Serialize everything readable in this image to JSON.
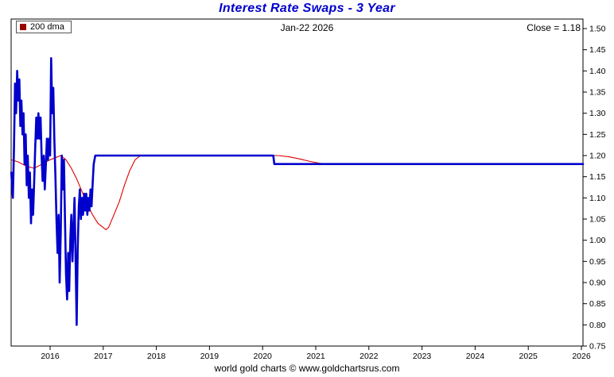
{
  "footer": {
    "credit": "world gold charts © www.goldchartsrus.com"
  },
  "chart_data": {
    "type": "line",
    "title": "Interest Rate Swaps - 3 Year",
    "top_center_label": "Jan-22  2026",
    "top_right_label": "Close = 1.18",
    "legend": [
      {
        "label": "200 dma",
        "color": "#990000"
      }
    ],
    "xlabel": "",
    "ylabel": "",
    "x_ticks": [
      2016,
      2017,
      2018,
      2019,
      2020,
      2021,
      2022,
      2023,
      2024,
      2025,
      2026
    ],
    "y_ticks": [
      0.75,
      0.8,
      0.85,
      0.9,
      0.95,
      1.0,
      1.05,
      1.1,
      1.15,
      1.2,
      1.25,
      1.3,
      1.35,
      1.4,
      1.45,
      1.5
    ],
    "x_range": [
      2015.27,
      2026.03
    ],
    "y_range": [
      0.75,
      1.5
    ],
    "grid": false,
    "legend_position": "top-left",
    "close_value": 1.18,
    "series": [
      {
        "name": "200 dma",
        "color": "#dd0000",
        "width": 1.1,
        "points": [
          [
            2015.27,
            1.19
          ],
          [
            2015.4,
            1.185
          ],
          [
            2015.55,
            1.175
          ],
          [
            2015.7,
            1.17
          ],
          [
            2015.85,
            1.18
          ],
          [
            2016.0,
            1.19
          ],
          [
            2016.1,
            1.195
          ],
          [
            2016.2,
            1.2
          ],
          [
            2016.3,
            1.19
          ],
          [
            2016.4,
            1.17
          ],
          [
            2016.5,
            1.145
          ],
          [
            2016.6,
            1.115
          ],
          [
            2016.7,
            1.085
          ],
          [
            2016.8,
            1.06
          ],
          [
            2016.9,
            1.04
          ],
          [
            2017.0,
            1.03
          ],
          [
            2017.05,
            1.025
          ],
          [
            2017.1,
            1.03
          ],
          [
            2017.2,
            1.06
          ],
          [
            2017.3,
            1.09
          ],
          [
            2017.4,
            1.13
          ],
          [
            2017.5,
            1.165
          ],
          [
            2017.6,
            1.19
          ],
          [
            2017.7,
            1.2
          ],
          [
            2020.3,
            1.2
          ],
          [
            2020.5,
            1.197
          ],
          [
            2020.7,
            1.192
          ],
          [
            2020.9,
            1.186
          ],
          [
            2021.1,
            1.181
          ],
          [
            2021.3,
            1.18
          ],
          [
            2026.03,
            1.18
          ]
        ]
      },
      {
        "name": "3 Year Interest Rate Swap",
        "color": "#0000cc",
        "width": 2.6,
        "points": [
          [
            2015.27,
            1.16
          ],
          [
            2015.3,
            1.1
          ],
          [
            2015.32,
            1.22
          ],
          [
            2015.34,
            1.37
          ],
          [
            2015.36,
            1.3
          ],
          [
            2015.38,
            1.4
          ],
          [
            2015.4,
            1.33
          ],
          [
            2015.42,
            1.38
          ],
          [
            2015.44,
            1.27
          ],
          [
            2015.46,
            1.33
          ],
          [
            2015.48,
            1.25
          ],
          [
            2015.5,
            1.3
          ],
          [
            2015.52,
            1.18
          ],
          [
            2015.54,
            1.25
          ],
          [
            2015.56,
            1.13
          ],
          [
            2015.58,
            1.2
          ],
          [
            2015.6,
            1.1
          ],
          [
            2015.62,
            1.16
          ],
          [
            2015.64,
            1.04
          ],
          [
            2015.66,
            1.12
          ],
          [
            2015.68,
            1.06
          ],
          [
            2015.7,
            1.14
          ],
          [
            2015.72,
            1.22
          ],
          [
            2015.74,
            1.29
          ],
          [
            2015.76,
            1.24
          ],
          [
            2015.78,
            1.3
          ],
          [
            2015.8,
            1.24
          ],
          [
            2015.82,
            1.29
          ],
          [
            2015.84,
            1.2
          ],
          [
            2015.86,
            1.14
          ],
          [
            2015.88,
            1.2
          ],
          [
            2015.9,
            1.12
          ],
          [
            2015.92,
            1.18
          ],
          [
            2015.94,
            1.24
          ],
          [
            2015.96,
            1.19
          ],
          [
            2015.98,
            1.24
          ],
          [
            2016.0,
            1.2
          ],
          [
            2016.02,
            1.43
          ],
          [
            2016.04,
            1.3
          ],
          [
            2016.06,
            1.36
          ],
          [
            2016.08,
            1.24
          ],
          [
            2016.1,
            1.15
          ],
          [
            2016.12,
            1.05
          ],
          [
            2016.14,
            0.97
          ],
          [
            2016.16,
            1.06
          ],
          [
            2016.18,
            0.9
          ],
          [
            2016.2,
            1.02
          ],
          [
            2016.22,
            1.2
          ],
          [
            2016.24,
            1.12
          ],
          [
            2016.26,
            1.19
          ],
          [
            2016.28,
            1.05
          ],
          [
            2016.3,
            0.92
          ],
          [
            2016.32,
            0.86
          ],
          [
            2016.34,
            0.97
          ],
          [
            2016.36,
            0.88
          ],
          [
            2016.38,
            1.0
          ],
          [
            2016.4,
            1.06
          ],
          [
            2016.42,
            0.95
          ],
          [
            2016.44,
            1.03
          ],
          [
            2016.46,
            1.1
          ],
          [
            2016.48,
            0.95
          ],
          [
            2016.5,
            0.8
          ],
          [
            2016.52,
            0.98
          ],
          [
            2016.54,
            1.08
          ],
          [
            2016.56,
            1.12
          ],
          [
            2016.58,
            1.05
          ],
          [
            2016.6,
            1.1
          ],
          [
            2016.62,
            1.06
          ],
          [
            2016.64,
            1.11
          ],
          [
            2016.66,
            1.07
          ],
          [
            2016.68,
            1.11
          ],
          [
            2016.7,
            1.06
          ],
          [
            2016.72,
            1.1
          ],
          [
            2016.74,
            1.07
          ],
          [
            2016.76,
            1.12
          ],
          [
            2016.78,
            1.08
          ],
          [
            2016.8,
            1.13
          ],
          [
            2016.82,
            1.18
          ],
          [
            2016.85,
            1.2
          ],
          [
            2020.2,
            1.2
          ],
          [
            2020.22,
            1.18
          ],
          [
            2026.03,
            1.18
          ]
        ]
      }
    ]
  }
}
